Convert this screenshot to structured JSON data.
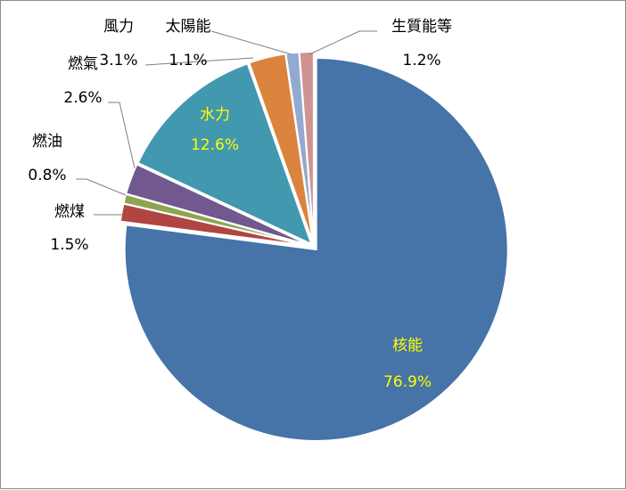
{
  "chart_data": {
    "type": "pie",
    "title": "",
    "slices": [
      {
        "name": "核能",
        "value": 76.9,
        "label": "76.9%",
        "color": "#4673A8"
      },
      {
        "name": "燃煤",
        "value": 1.5,
        "label": "1.5%",
        "color": "#B04542"
      },
      {
        "name": "燃油",
        "value": 0.8,
        "label": "0.8%",
        "color": "#8CA650"
      },
      {
        "name": "燃氣",
        "value": 2.6,
        "label": "2.6%",
        "color": "#71588F"
      },
      {
        "name": "水力",
        "value": 12.6,
        "label": "12.6%",
        "color": "#4198AF"
      },
      {
        "name": "風力",
        "value": 3.1,
        "label": "3.1%",
        "color": "#DB843D"
      },
      {
        "name": "太陽能",
        "value": 1.1,
        "label": "1.1%",
        "color": "#93A9CF"
      },
      {
        "name": "生質能等",
        "value": 1.2,
        "label": "1.2%",
        "color": "#D19392"
      }
    ],
    "legend": "none",
    "exploded": true
  }
}
